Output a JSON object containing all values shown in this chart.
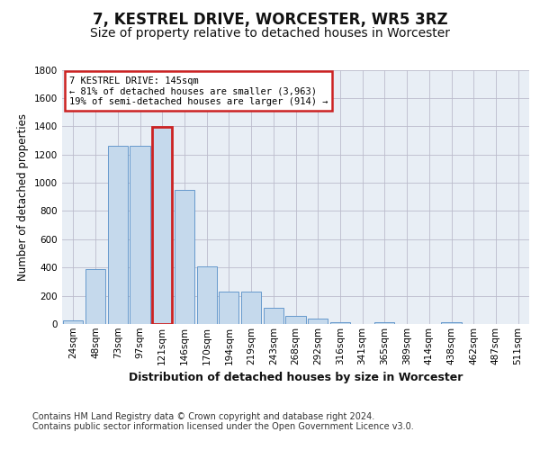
{
  "title": "7, KESTREL DRIVE, WORCESTER, WR5 3RZ",
  "subtitle": "Size of property relative to detached houses in Worcester",
  "xlabel": "Distribution of detached houses by size in Worcester",
  "ylabel": "Number of detached properties",
  "categories": [
    "24sqm",
    "48sqm",
    "73sqm",
    "97sqm",
    "121sqm",
    "146sqm",
    "170sqm",
    "194sqm",
    "219sqm",
    "243sqm",
    "268sqm",
    "292sqm",
    "316sqm",
    "341sqm",
    "365sqm",
    "389sqm",
    "414sqm",
    "438sqm",
    "462sqm",
    "487sqm",
    "511sqm"
  ],
  "values": [
    25,
    390,
    1260,
    1260,
    1395,
    950,
    410,
    230,
    230,
    115,
    60,
    40,
    15,
    0,
    15,
    0,
    0,
    15,
    0,
    0,
    0
  ],
  "bar_color": "#c5d9ec",
  "bar_edge_color": "#6699cc",
  "highlight_index": 4,
  "highlight_bar_edge_color": "#cc2222",
  "annotation_box_text": "7 KESTREL DRIVE: 145sqm\n← 81% of detached houses are smaller (3,963)\n19% of semi-detached houses are larger (914) →",
  "annotation_box_color": "#ffffff",
  "annotation_box_edge_color": "#cc2222",
  "footer_text": "Contains HM Land Registry data © Crown copyright and database right 2024.\nContains public sector information licensed under the Open Government Licence v3.0.",
  "ylim": [
    0,
    1800
  ],
  "yticks": [
    0,
    200,
    400,
    600,
    800,
    1000,
    1200,
    1400,
    1600,
    1800
  ],
  "bg_color": "#e8eef5",
  "fig_bg_color": "#ffffff",
  "title_fontsize": 12,
  "subtitle_fontsize": 10,
  "axis_label_fontsize": 8.5,
  "tick_fontsize": 7.5,
  "footer_fontsize": 7
}
